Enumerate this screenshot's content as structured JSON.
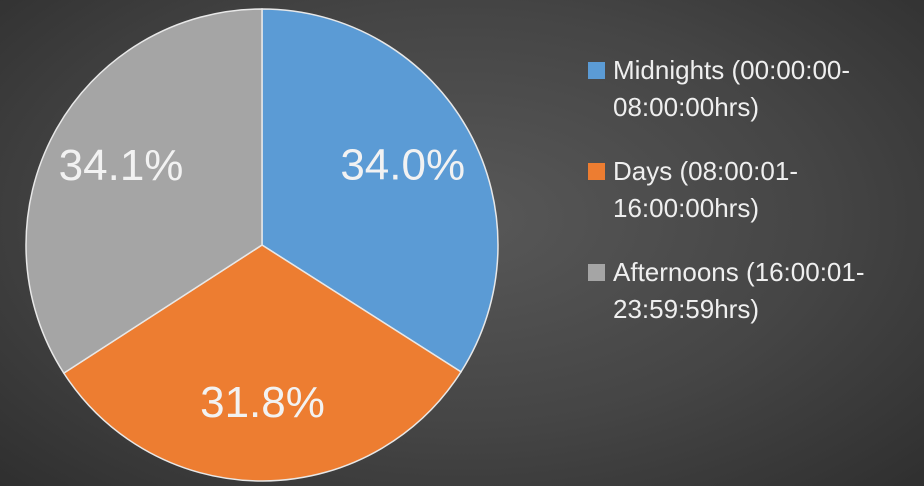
{
  "chart_data": {
    "type": "pie",
    "categories": [
      "Midnights (00:00:00-08:00:00hrs)",
      "Days (08:00:01-16:00:00hrs)",
      "Afternoons (16:00:01-23:59:59hrs)"
    ],
    "values": [
      34.0,
      31.8,
      34.1
    ],
    "value_labels": [
      "34.0%",
      "31.8%",
      "34.1%"
    ],
    "colors": [
      "#5b9bd5",
      "#ed7d31",
      "#a5a5a5"
    ],
    "legend": "right"
  }
}
